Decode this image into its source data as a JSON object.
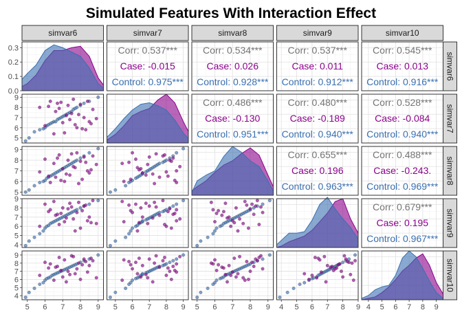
{
  "chart_data": {
    "type": "pairs",
    "title": "Simulated Features With Interaction Effect",
    "variables": [
      "simvar6",
      "simvar7",
      "simvar8",
      "simvar9",
      "simvar10"
    ],
    "groups": [
      {
        "name": "Case",
        "color": "#8B008B"
      },
      {
        "name": "Control",
        "color": "#3A6FB0"
      }
    ],
    "overall_color": "#737373",
    "axis_ticks": {
      "simvar6": [
        5,
        6,
        7,
        8,
        9
      ],
      "simvar7": [
        5,
        6,
        7,
        8,
        9
      ],
      "simvar8": [
        5,
        6,
        7,
        8,
        9
      ],
      "simvar9": [
        4,
        5,
        6,
        7,
        8,
        9
      ],
      "simvar10": [
        4,
        5,
        6,
        7,
        8,
        9
      ]
    },
    "axis_ranges": {
      "simvar6": [
        4.7,
        9.3
      ],
      "simvar7": [
        4.5,
        9.3
      ],
      "simvar8": [
        4.7,
        9.3
      ],
      "simvar9": [
        3.7,
        9.0
      ],
      "simvar10": [
        3.5,
        9.5
      ]
    },
    "density_ylim": [
      0,
      0.34
    ],
    "density_yticks": [
      "0.0",
      "0.1",
      "0.2",
      "0.3"
    ],
    "correlations": [
      {
        "row": "simvar6",
        "col": "simvar7",
        "lines": [
          "Corr: 0.537***",
          "Case: -0.015",
          "Control: 0.975***"
        ]
      },
      {
        "row": "simvar6",
        "col": "simvar8",
        "lines": [
          "Corr: 0.534***",
          "Case: 0.026",
          "Control: 0.928***"
        ]
      },
      {
        "row": "simvar6",
        "col": "simvar9",
        "lines": [
          "Corr: 0.537***",
          "Case: 0.011",
          "Control: 0.912***"
        ]
      },
      {
        "row": "simvar6",
        "col": "simvar10",
        "lines": [
          "Corr: 0.545***",
          "Case: 0.013",
          "Control: 0.916***"
        ]
      },
      {
        "row": "simvar7",
        "col": "simvar8",
        "lines": [
          "Corr: 0.486***",
          "Case: -0.130",
          "Control: 0.951***"
        ]
      },
      {
        "row": "simvar7",
        "col": "simvar9",
        "lines": [
          "Corr: 0.480***",
          "Case: -0.189",
          "Control: 0.940***"
        ]
      },
      {
        "row": "simvar7",
        "col": "simvar10",
        "lines": [
          "Corr: 0.528***",
          "Case: -0.084",
          "Control: 0.940***"
        ]
      },
      {
        "row": "simvar8",
        "col": "simvar9",
        "lines": [
          "Corr: 0.655***",
          "Case: 0.196",
          "Control: 0.963***"
        ]
      },
      {
        "row": "simvar8",
        "col": "simvar10",
        "lines": [
          "Corr: 0.488***",
          "Case: -0.243.",
          "Control: 0.969***"
        ]
      },
      {
        "row": "simvar9",
        "col": "simvar10",
        "lines": [
          "Corr: 0.679***",
          "Case: 0.195",
          "Control: 0.967***"
        ]
      }
    ],
    "densities": {
      "simvar6": {
        "x": [
          4.7,
          5.0,
          5.5,
          6.0,
          6.5,
          7.0,
          7.5,
          8.0,
          8.5,
          9.0,
          9.3
        ],
        "Case": [
          0.03,
          0.05,
          0.11,
          0.21,
          0.28,
          0.28,
          0.3,
          0.31,
          0.24,
          0.09,
          0.04
        ],
        "Control": [
          0.08,
          0.12,
          0.18,
          0.28,
          0.32,
          0.3,
          0.27,
          0.24,
          0.16,
          0.05,
          0.02
        ]
      },
      "simvar7": {
        "x": [
          4.5,
          5.0,
          5.5,
          6.0,
          6.5,
          7.0,
          7.5,
          8.0,
          8.5,
          9.0,
          9.3
        ],
        "Case": [
          0.02,
          0.06,
          0.12,
          0.19,
          0.22,
          0.24,
          0.3,
          0.34,
          0.28,
          0.15,
          0.08
        ],
        "Control": [
          0.04,
          0.1,
          0.17,
          0.23,
          0.27,
          0.28,
          0.26,
          0.23,
          0.16,
          0.07,
          0.03
        ]
      },
      "simvar8": {
        "x": [
          4.7,
          5.0,
          5.5,
          6.0,
          6.5,
          7.0,
          7.5,
          8.0,
          8.5,
          9.0,
          9.3
        ],
        "Case": [
          0.03,
          0.06,
          0.1,
          0.16,
          0.21,
          0.24,
          0.29,
          0.33,
          0.28,
          0.14,
          0.06
        ],
        "Control": [
          0.02,
          0.1,
          0.14,
          0.17,
          0.27,
          0.34,
          0.3,
          0.24,
          0.2,
          0.1,
          0.03
        ]
      },
      "simvar9": {
        "x": [
          3.7,
          4.0,
          4.5,
          5.0,
          5.5,
          6.0,
          6.5,
          7.0,
          7.5,
          8.0,
          8.5,
          9.0
        ],
        "Case": [
          0.0,
          0.01,
          0.04,
          0.06,
          0.08,
          0.12,
          0.18,
          0.24,
          0.32,
          0.34,
          0.2,
          0.1
        ],
        "Control": [
          0.02,
          0.05,
          0.1,
          0.1,
          0.11,
          0.19,
          0.3,
          0.35,
          0.27,
          0.2,
          0.14,
          0.06
        ]
      },
      "simvar10": {
        "x": [
          3.5,
          4.0,
          4.5,
          5.0,
          5.5,
          6.0,
          6.5,
          7.0,
          7.5,
          8.0,
          8.5,
          9.0,
          9.5
        ],
        "Case": [
          0.0,
          0.01,
          0.02,
          0.05,
          0.09,
          0.14,
          0.2,
          0.24,
          0.29,
          0.32,
          0.24,
          0.12,
          0.04
        ],
        "Control": [
          0.01,
          0.03,
          0.07,
          0.09,
          0.1,
          0.17,
          0.29,
          0.34,
          0.3,
          0.22,
          0.13,
          0.05,
          0.01
        ]
      }
    },
    "points": {
      "simvar6": {
        "Control": [
          4.9,
          5.1,
          5.4,
          5.7,
          5.9,
          6.0,
          6.1,
          6.2,
          6.3,
          6.4,
          6.5,
          6.6,
          6.7,
          6.8,
          6.9,
          7.0,
          7.1,
          7.2,
          7.3,
          7.4,
          7.5,
          7.6,
          7.7,
          7.8,
          8.0,
          8.2,
          8.5,
          9.0
        ],
        "Case": [
          5.7,
          6.0,
          6.3,
          6.5,
          6.6,
          6.8,
          7.0,
          7.1,
          7.3,
          7.4,
          7.6,
          7.8,
          7.9,
          8.0,
          8.1,
          8.2,
          8.4,
          8.5,
          8.7,
          8.9,
          6.9,
          7.5,
          7.7,
          6.2,
          8.3,
          7.2,
          6.7,
          8.6
        ]
      },
      "simvar7": {
        "Control": [
          4.7,
          5.0,
          5.6,
          5.8,
          5.9,
          6.0,
          6.2,
          6.3,
          6.4,
          6.5,
          6.6,
          6.6,
          6.8,
          6.9,
          7.0,
          7.1,
          7.2,
          7.3,
          7.4,
          7.5,
          7.6,
          7.8,
          7.9,
          8.0,
          8.2,
          8.4,
          8.6,
          9.0
        ],
        "Case": [
          8.0,
          6.2,
          8.6,
          5.4,
          7.6,
          7.9,
          6.5,
          5.5,
          8.2,
          6.8,
          8.8,
          6.0,
          7.3,
          8.3,
          5.9,
          7.0,
          8.6,
          6.6,
          7.8,
          6.9,
          8.5,
          7.4,
          6.3,
          8.1,
          5.8,
          7.2,
          8.4,
          6.4
        ]
      },
      "simvar8": {
        "Control": [
          5.0,
          5.2,
          5.6,
          5.9,
          6.0,
          6.1,
          6.3,
          6.4,
          6.5,
          6.6,
          6.7,
          6.8,
          6.9,
          7.0,
          7.1,
          7.2,
          7.3,
          7.4,
          7.5,
          7.6,
          7.7,
          7.8,
          7.9,
          8.0,
          8.2,
          8.4,
          8.7,
          9.1
        ],
        "Case": [
          6.9,
          8.1,
          5.9,
          7.7,
          6.4,
          8.5,
          7.2,
          6.0,
          8.0,
          6.6,
          7.4,
          8.7,
          5.8,
          7.9,
          6.2,
          8.3,
          7.0,
          6.8,
          8.4,
          7.6,
          6.1,
          8.6,
          7.3,
          6.5,
          7.8,
          6.7,
          8.2,
          7.1
        ]
      },
      "simvar9": {
        "Control": [
          3.9,
          4.4,
          4.8,
          5.2,
          5.5,
          5.8,
          6.0,
          6.1,
          6.3,
          6.4,
          6.5,
          6.6,
          6.7,
          6.8,
          6.9,
          7.0,
          7.1,
          7.2,
          7.3,
          7.4,
          7.5,
          7.6,
          7.7,
          7.8,
          8.0,
          8.2,
          8.4,
          8.8
        ],
        "Case": [
          6.0,
          8.4,
          7.8,
          8.7,
          7.2,
          6.2,
          8.0,
          6.5,
          7.9,
          8.5,
          6.8,
          7.5,
          8.6,
          5.8,
          7.7,
          8.2,
          6.6,
          7.0,
          8.8,
          6.3,
          7.4,
          8.1,
          5.5,
          7.6,
          8.3,
          6.9,
          7.3,
          6.4
        ]
      },
      "simvar10": {
        "Control": [
          3.8,
          4.4,
          4.9,
          5.4,
          5.6,
          5.9,
          6.1,
          6.2,
          6.3,
          6.5,
          6.6,
          6.7,
          6.8,
          6.9,
          7.0,
          7.1,
          7.2,
          7.3,
          7.4,
          7.5,
          7.6,
          7.7,
          7.8,
          7.9,
          8.1,
          8.3,
          8.5,
          9.0
        ],
        "Case": [
          6.5,
          8.1,
          7.9,
          5.9,
          7.5,
          8.7,
          6.3,
          8.4,
          7.0,
          6.6,
          8.8,
          7.3,
          8.0,
          6.0,
          7.8,
          8.5,
          6.9,
          7.7,
          8.3,
          6.2,
          7.1,
          8.9,
          6.7,
          7.4,
          8.2,
          5.7,
          7.6,
          8.6
        ]
      }
    }
  }
}
